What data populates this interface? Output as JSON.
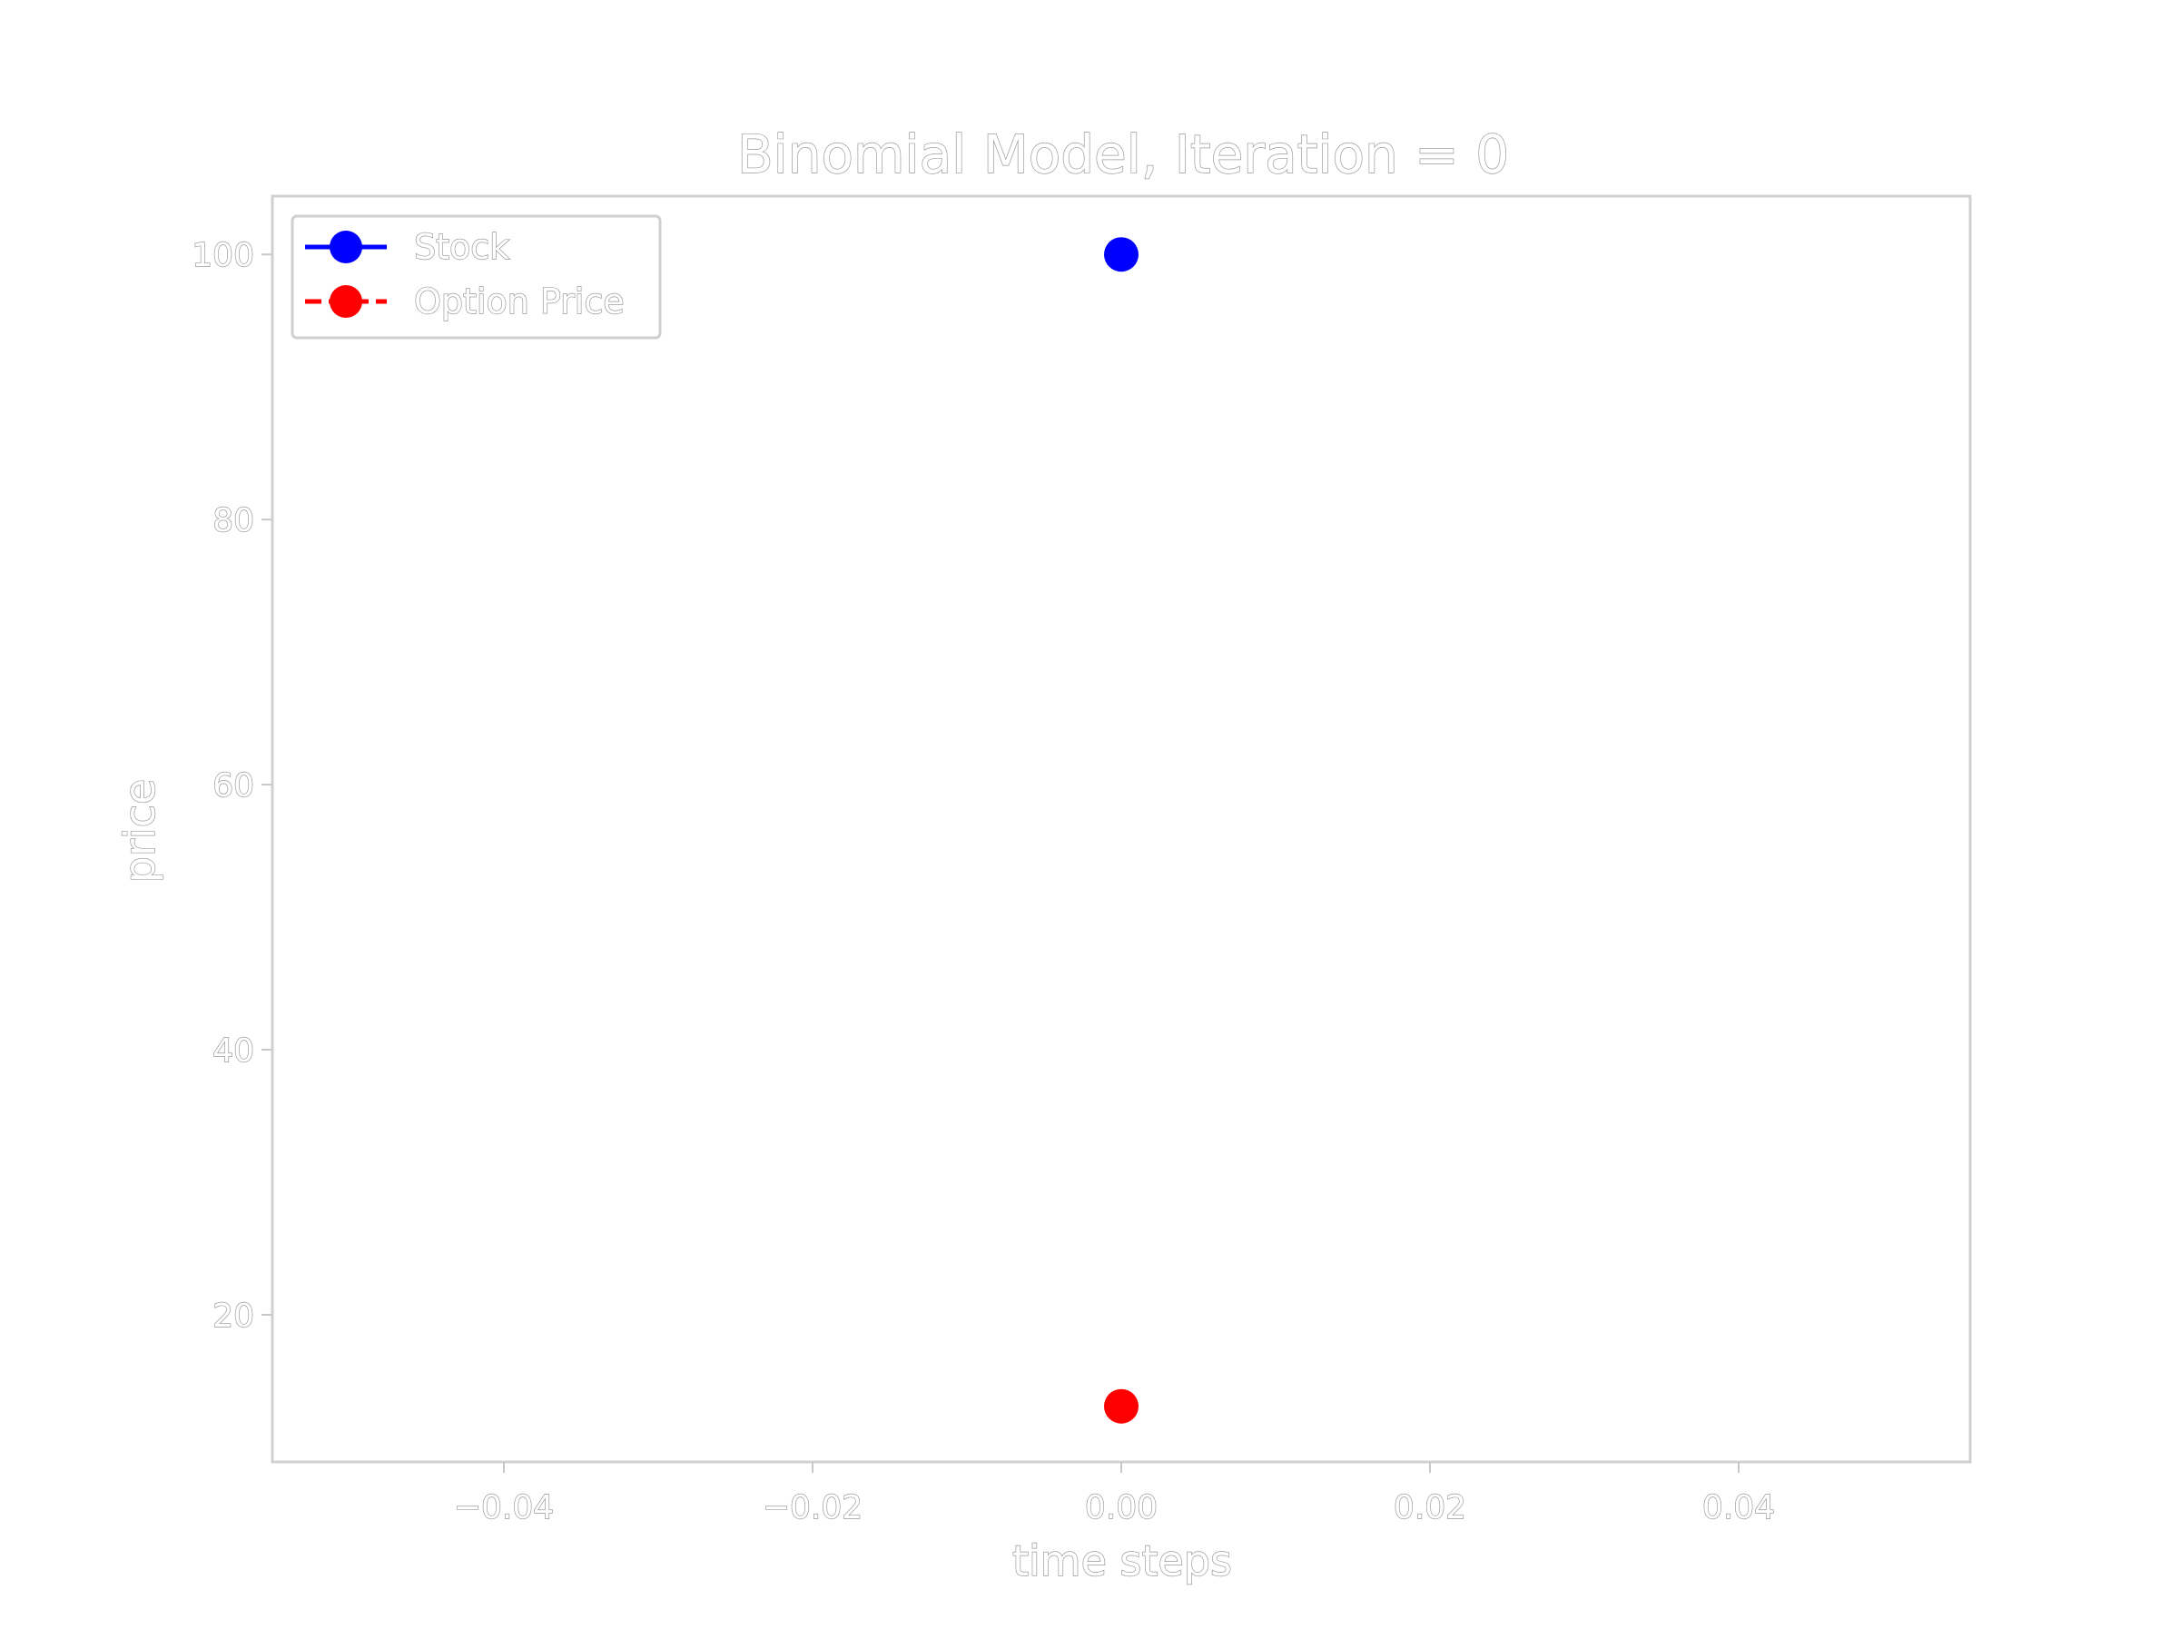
{
  "chart_data": {
    "type": "scatter",
    "title": "Binomial Model, Iteration = 0",
    "xlabel": "time steps",
    "ylabel": "price",
    "xlim": [
      -0.055,
      0.055
    ],
    "ylim": [
      8.9,
      104.4
    ],
    "x_ticks": [
      {
        "value": -0.04,
        "label": "−0.04"
      },
      {
        "value": -0.02,
        "label": "−0.02"
      },
      {
        "value": 0.0,
        "label": "0.00"
      },
      {
        "value": 0.02,
        "label": "0.02"
      },
      {
        "value": 0.04,
        "label": "0.04"
      }
    ],
    "y_ticks": [
      {
        "value": 20,
        "label": "20"
      },
      {
        "value": 40,
        "label": "40"
      },
      {
        "value": 60,
        "label": "60"
      },
      {
        "value": 80,
        "label": "80"
      },
      {
        "value": 100,
        "label": "100"
      }
    ],
    "grid": false,
    "legend_position": "top-left",
    "series": [
      {
        "name": "Stock",
        "color": "#0000ff",
        "line_style": "solid",
        "marker": "circle",
        "x": [
          0.0
        ],
        "y": [
          100.0
        ]
      },
      {
        "name": "Option Price",
        "color": "#ff0000",
        "line_style": "dashed",
        "marker": "circle",
        "x": [
          0.0
        ],
        "y": [
          13.1
        ]
      }
    ]
  }
}
